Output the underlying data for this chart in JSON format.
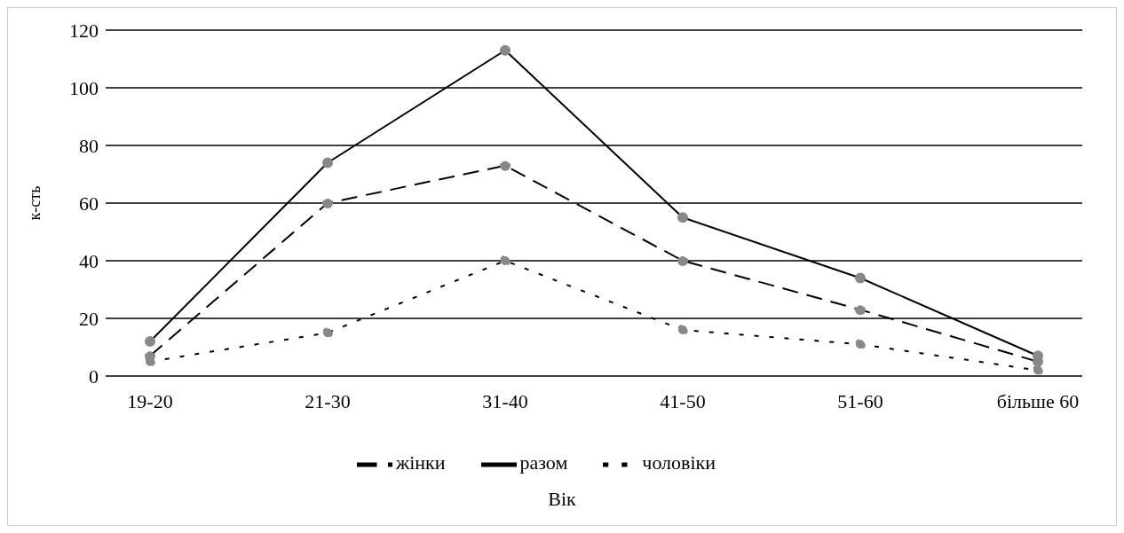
{
  "chart_data": {
    "type": "line",
    "xlabel": "Вік",
    "ylabel": "к-сть",
    "categories": [
      "19-20",
      "21-30",
      "31-40",
      "41-50",
      "51-60",
      "більше 60"
    ],
    "series": [
      {
        "name": "чоловіки",
        "color": "#000000",
        "line_style": "dotted",
        "values": [
          5,
          15,
          40,
          16,
          11,
          2
        ]
      },
      {
        "name": "жінки",
        "color": "#000000",
        "line_style": "dashed",
        "values": [
          7,
          60,
          73,
          40,
          23,
          5
        ]
      },
      {
        "name": "разом",
        "color": "#000000",
        "line_style": "solid",
        "values": [
          12,
          74,
          113,
          55,
          34,
          7
        ]
      }
    ],
    "ylim": [
      0,
      120
    ],
    "yticks": [
      0,
      20,
      40,
      60,
      80,
      100,
      120
    ],
    "grid": "y",
    "legend": "bottom",
    "marker": "circle"
  }
}
